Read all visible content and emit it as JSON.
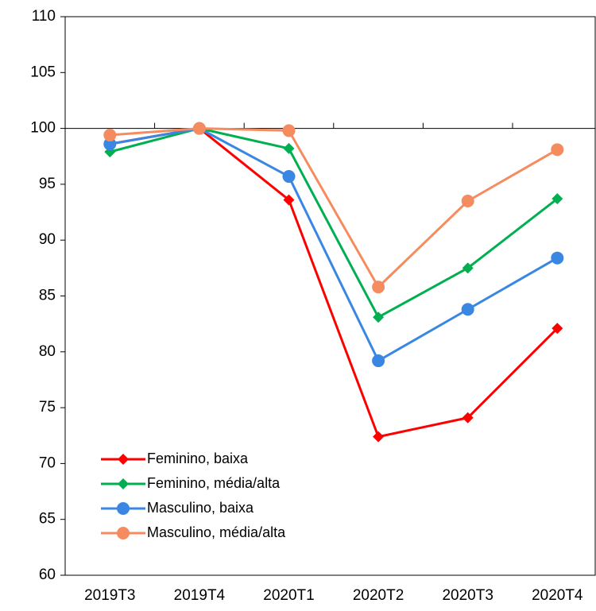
{
  "chart_data": {
    "type": "line",
    "categories": [
      "2019T3",
      "2019T4",
      "2020T1",
      "2020T2",
      "2020T3",
      "2020T4"
    ],
    "series": [
      {
        "name": "Feminino, baixa",
        "color": "#ff0000",
        "marker": "diamond",
        "values": [
          98.6,
          100,
          93.6,
          72.4,
          74.1,
          82.1
        ]
      },
      {
        "name": "Feminino, média/alta",
        "color": "#00b050",
        "marker": "diamond",
        "values": [
          97.9,
          100,
          98.2,
          83.1,
          87.5,
          93.7
        ]
      },
      {
        "name": "Masculino, baixa",
        "color": "#3a87e3",
        "marker": "circle",
        "values": [
          98.6,
          100,
          95.7,
          79.2,
          83.8,
          88.4
        ]
      },
      {
        "name": "Masculino, média/alta",
        "color": "#f58c5f",
        "marker": "circle",
        "values": [
          99.4,
          100,
          99.8,
          85.8,
          93.5,
          98.1
        ]
      }
    ],
    "ylim": [
      60,
      110
    ],
    "yticks": [
      60,
      65,
      70,
      75,
      80,
      85,
      90,
      95,
      100,
      105,
      110
    ],
    "x_axis_crossing": 100,
    "grid": false,
    "legend": "lower left"
  }
}
